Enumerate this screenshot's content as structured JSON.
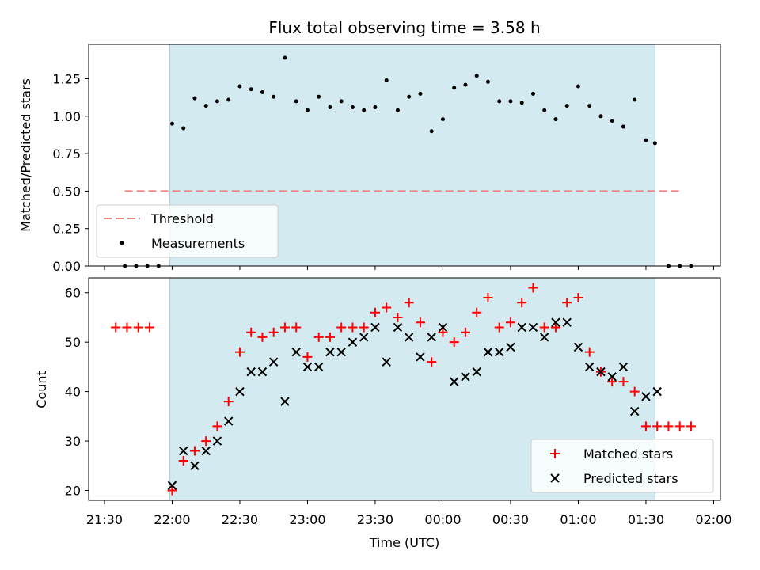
{
  "chart_data": {
    "title": "Flux total observing time = 3.58 h",
    "shade_color": "#d3eaf0",
    "x_axis": {
      "label": "Time (UTC)",
      "tick_labels": [
        "21:30",
        "22:00",
        "22:30",
        "23:00",
        "23:30",
        "00:00",
        "00:30",
        "01:00",
        "01:30",
        "02:00"
      ],
      "tick_minutes": [
        0,
        30,
        60,
        90,
        120,
        150,
        180,
        210,
        240,
        270
      ],
      "range_minutes": [
        -7,
        273
      ],
      "origin_time": "21:30",
      "shaded_span": [
        "21:59",
        "01:34"
      ]
    },
    "panels": [
      {
        "type": "scatter",
        "ylabel": "Matched/Predicted stars",
        "ylim": [
          0,
          1.48
        ],
        "yticks": [
          "0.00",
          "0.25",
          "0.50",
          "0.75",
          "1.00",
          "1.25"
        ],
        "threshold": {
          "name": "Threshold",
          "value": 0.5,
          "x_range": [
            "21:39",
            "01:45"
          ],
          "color": "#f08080"
        },
        "series": [
          {
            "name": "Measurements",
            "color": "#000000",
            "marker": "dot",
            "points": [
              [
                "21:39",
                0
              ],
              [
                "21:44",
                0
              ],
              [
                "21:49",
                0
              ],
              [
                "21:54",
                0
              ],
              [
                "22:00",
                0.95
              ],
              [
                "22:05",
                0.92
              ],
              [
                "22:10",
                1.12
              ],
              [
                "22:15",
                1.07
              ],
              [
                "22:20",
                1.1
              ],
              [
                "22:25",
                1.11
              ],
              [
                "22:30",
                1.2
              ],
              [
                "22:35",
                1.18
              ],
              [
                "22:40",
                1.16
              ],
              [
                "22:45",
                1.13
              ],
              [
                "22:50",
                1.39
              ],
              [
                "22:55",
                1.1
              ],
              [
                "23:00",
                1.04
              ],
              [
                "23:05",
                1.13
              ],
              [
                "23:10",
                1.06
              ],
              [
                "23:15",
                1.1
              ],
              [
                "23:20",
                1.06
              ],
              [
                "23:25",
                1.04
              ],
              [
                "23:30",
                1.06
              ],
              [
                "23:35",
                1.24
              ],
              [
                "23:40",
                1.04
              ],
              [
                "23:45",
                1.13
              ],
              [
                "23:50",
                1.15
              ],
              [
                "23:55",
                0.9
              ],
              [
                "00:00",
                0.98
              ],
              [
                "00:05",
                1.19
              ],
              [
                "00:10",
                1.21
              ],
              [
                "00:15",
                1.27
              ],
              [
                "00:20",
                1.23
              ],
              [
                "00:25",
                1.1
              ],
              [
                "00:30",
                1.1
              ],
              [
                "00:35",
                1.09
              ],
              [
                "00:40",
                1.15
              ],
              [
                "00:45",
                1.04
              ],
              [
                "00:50",
                0.98
              ],
              [
                "00:55",
                1.07
              ],
              [
                "01:00",
                1.2
              ],
              [
                "01:05",
                1.07
              ],
              [
                "01:10",
                1.0
              ],
              [
                "01:15",
                0.97
              ],
              [
                "01:20",
                0.93
              ],
              [
                "01:25",
                1.11
              ],
              [
                "01:30",
                0.84
              ],
              [
                "01:34",
                0.82
              ],
              [
                "01:40",
                0
              ],
              [
                "01:45",
                0
              ],
              [
                "01:50",
                0
              ]
            ]
          }
        ],
        "legend": {
          "position": "lower-left",
          "entries": [
            "Threshold",
            "Measurements"
          ]
        }
      },
      {
        "type": "scatter",
        "ylabel": "Count",
        "ylim": [
          18,
          63
        ],
        "yticks": [
          "20",
          "30",
          "40",
          "50",
          "60"
        ],
        "series": [
          {
            "name": "Matched stars",
            "color": "#ff0000",
            "marker": "plus",
            "points": [
              [
                "21:35",
                53
              ],
              [
                "21:40",
                53
              ],
              [
                "21:45",
                53
              ],
              [
                "21:50",
                53
              ],
              [
                "22:00",
                20
              ],
              [
                "22:05",
                26
              ],
              [
                "22:10",
                28
              ],
              [
                "22:15",
                30
              ],
              [
                "22:20",
                33
              ],
              [
                "22:25",
                38
              ],
              [
                "22:30",
                48
              ],
              [
                "22:35",
                52
              ],
              [
                "22:40",
                51
              ],
              [
                "22:45",
                52
              ],
              [
                "22:50",
                53
              ],
              [
                "22:55",
                53
              ],
              [
                "23:00",
                47
              ],
              [
                "23:05",
                51
              ],
              [
                "23:10",
                51
              ],
              [
                "23:15",
                53
              ],
              [
                "23:20",
                53
              ],
              [
                "23:25",
                53
              ],
              [
                "23:30",
                56
              ],
              [
                "23:35",
                57
              ],
              [
                "23:40",
                55
              ],
              [
                "23:45",
                58
              ],
              [
                "23:50",
                54
              ],
              [
                "23:55",
                46
              ],
              [
                "00:00",
                52
              ],
              [
                "00:05",
                50
              ],
              [
                "00:10",
                52
              ],
              [
                "00:15",
                56
              ],
              [
                "00:20",
                59
              ],
              [
                "00:25",
                53
              ],
              [
                "00:30",
                54
              ],
              [
                "00:35",
                58
              ],
              [
                "00:40",
                61
              ],
              [
                "00:45",
                53
              ],
              [
                "00:50",
                53
              ],
              [
                "00:55",
                58
              ],
              [
                "01:00",
                59
              ],
              [
                "01:05",
                48
              ],
              [
                "01:10",
                44
              ],
              [
                "01:15",
                42
              ],
              [
                "01:20",
                42
              ],
              [
                "01:25",
                40
              ],
              [
                "01:30",
                33
              ],
              [
                "01:35",
                33
              ],
              [
                "01:40",
                33
              ],
              [
                "01:45",
                33
              ],
              [
                "01:50",
                33
              ]
            ]
          },
          {
            "name": "Predicted stars",
            "color": "#000000",
            "marker": "x",
            "points": [
              [
                "22:00",
                21
              ],
              [
                "22:05",
                28
              ],
              [
                "22:10",
                25
              ],
              [
                "22:15",
                28
              ],
              [
                "22:20",
                30
              ],
              [
                "22:25",
                34
              ],
              [
                "22:30",
                40
              ],
              [
                "22:35",
                44
              ],
              [
                "22:40",
                44
              ],
              [
                "22:45",
                46
              ],
              [
                "22:50",
                38
              ],
              [
                "22:55",
                48
              ],
              [
                "23:00",
                45
              ],
              [
                "23:05",
                45
              ],
              [
                "23:10",
                48
              ],
              [
                "23:15",
                48
              ],
              [
                "23:20",
                50
              ],
              [
                "23:25",
                51
              ],
              [
                "23:30",
                53
              ],
              [
                "23:35",
                46
              ],
              [
                "23:40",
                53
              ],
              [
                "23:45",
                51
              ],
              [
                "23:50",
                47
              ],
              [
                "23:55",
                51
              ],
              [
                "00:00",
                53
              ],
              [
                "00:05",
                42
              ],
              [
                "00:10",
                43
              ],
              [
                "00:15",
                44
              ],
              [
                "00:20",
                48
              ],
              [
                "00:25",
                48
              ],
              [
                "00:30",
                49
              ],
              [
                "00:35",
                53
              ],
              [
                "00:40",
                53
              ],
              [
                "00:45",
                51
              ],
              [
                "00:50",
                54
              ],
              [
                "00:55",
                54
              ],
              [
                "01:00",
                49
              ],
              [
                "01:05",
                45
              ],
              [
                "01:10",
                44
              ],
              [
                "01:15",
                43
              ],
              [
                "01:20",
                45
              ],
              [
                "01:25",
                36
              ],
              [
                "01:30",
                39
              ],
              [
                "01:35",
                40
              ]
            ]
          }
        ],
        "legend": {
          "position": "lower-right",
          "entries": [
            "Matched stars",
            "Predicted stars"
          ]
        }
      }
    ]
  }
}
